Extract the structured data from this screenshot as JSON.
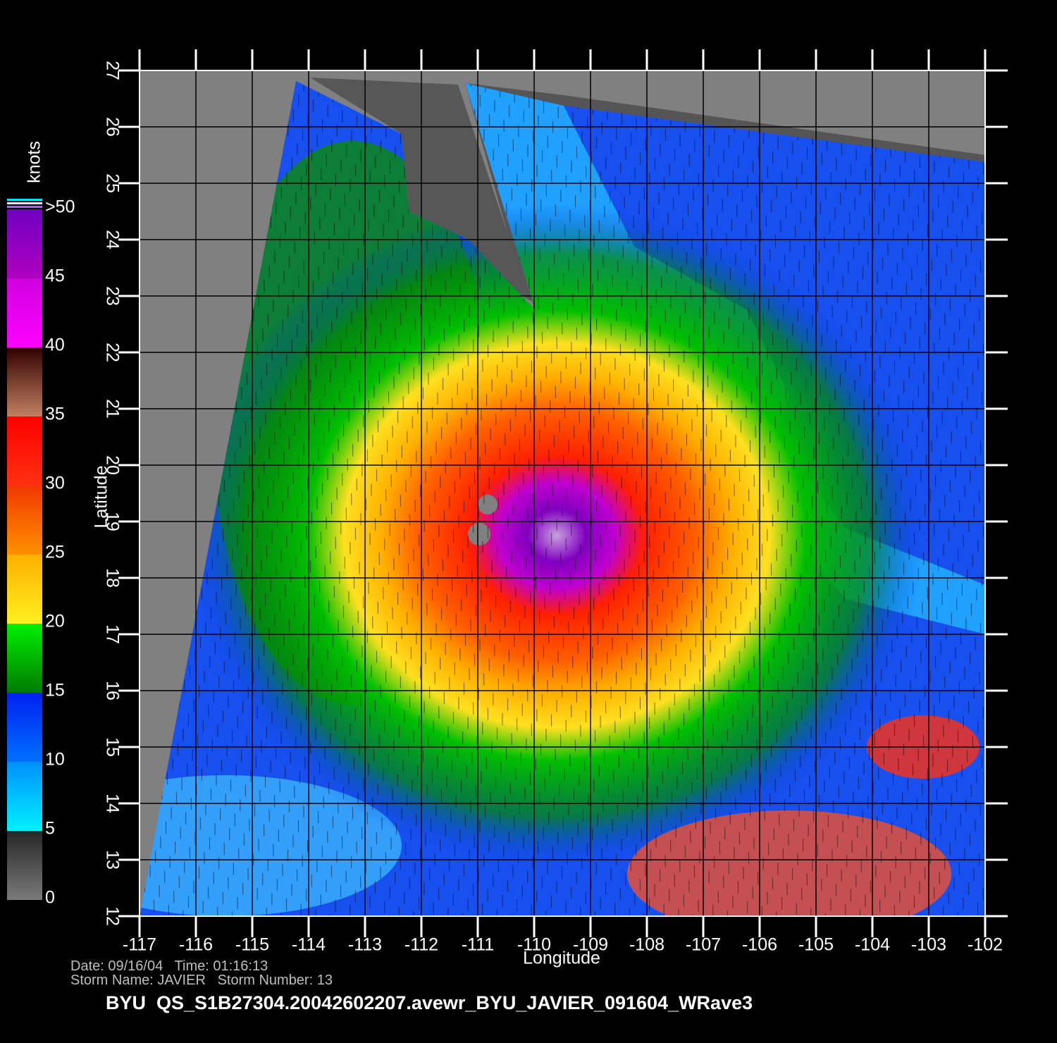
{
  "map": {
    "xlabel": "Longitude",
    "ylabel": "Latitude",
    "xlim": [
      -117,
      -102
    ],
    "ylim": [
      12,
      27
    ],
    "xticks": [
      -117,
      -116,
      -115,
      -114,
      -113,
      -112,
      -111,
      -110,
      -109,
      -108,
      -107,
      -106,
      -105,
      -104,
      -103,
      -102
    ],
    "yticks": [
      12,
      13,
      14,
      15,
      16,
      17,
      18,
      19,
      20,
      21,
      22,
      23,
      24,
      25,
      26,
      27
    ],
    "grid": true
  },
  "colorbar": {
    "title": "knots",
    "lim": [
      0,
      50
    ],
    "ticks": [
      0,
      5,
      10,
      15,
      20,
      25,
      30,
      35,
      40,
      45,
      {
        "value": 50,
        "label": ">50"
      }
    ],
    "colors": [
      [
        "#7a7a7a",
        "#262626"
      ],
      [
        "#00f0ff",
        "#0090ff"
      ],
      [
        "#0070ff",
        "#0020f0"
      ],
      [
        "#007a00",
        "#00f000"
      ],
      [
        "#fff020",
        "#ffb000"
      ],
      [
        "#ff9000",
        "#f03800"
      ],
      [
        "#ff3010",
        "#ff0000"
      ],
      [
        "#c08060",
        "#300000"
      ],
      [
        "#ff00ff",
        "#d000e0"
      ],
      [
        "#b000c0",
        "#7000c0"
      ]
    ]
  },
  "footer": {
    "date_line": "Date: 09/16/04   Time: 01:16:13",
    "storm_line": "Storm Name: JAVIER   Storm Number: 13",
    "file_line": "BYU  QS_S1B27304.20042602207.avewr_BYU_JAVIER_091604_WRave3"
  }
}
